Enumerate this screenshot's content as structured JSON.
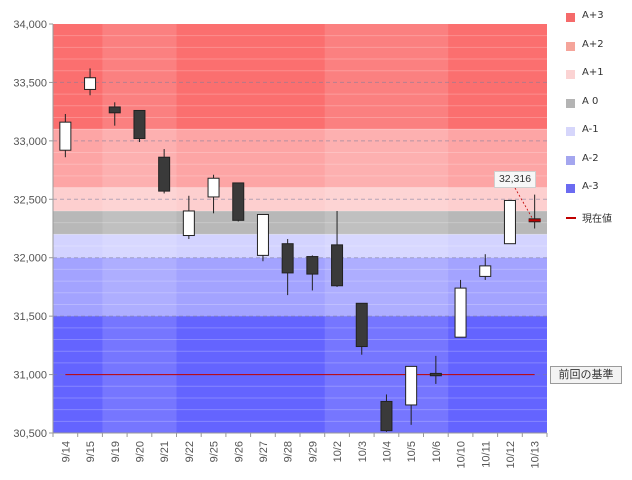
{
  "chart_data": {
    "type": "candlestick",
    "title": "",
    "xlabel": "",
    "ylabel": "",
    "ylim": [
      30500,
      34000
    ],
    "yticks": [
      "30,500",
      "31,000",
      "31,500",
      "32,000",
      "32,500",
      "33,000",
      "33,500",
      "34,000"
    ],
    "ytick_values": [
      30500,
      31000,
      31500,
      32000,
      32500,
      33000,
      33500,
      34000
    ],
    "categories": [
      "9/14",
      "9/15",
      "9/19",
      "9/20",
      "9/21",
      "9/22",
      "9/25",
      "9/26",
      "9/27",
      "9/28",
      "9/29",
      "10/2",
      "10/3",
      "10/4",
      "10/5",
      "10/6",
      "10/10",
      "10/11",
      "10/12",
      "10/13"
    ],
    "candles": [
      {
        "date": "9/14",
        "open": 32920,
        "close": 33160,
        "high": 33230,
        "low": 32860
      },
      {
        "date": "9/15",
        "open": 33440,
        "close": 33540,
        "high": 33620,
        "low": 33390
      },
      {
        "date": "9/19",
        "open": 33290,
        "close": 33240,
        "high": 33330,
        "low": 33130
      },
      {
        "date": "9/20",
        "open": 33260,
        "close": 33020,
        "high": 33260,
        "low": 32990
      },
      {
        "date": "9/21",
        "open": 32860,
        "close": 32570,
        "high": 32930,
        "low": 32550
      },
      {
        "date": "9/22",
        "open": 32190,
        "close": 32400,
        "high": 32530,
        "low": 32160
      },
      {
        "date": "9/25",
        "open": 32520,
        "close": 32680,
        "high": 32710,
        "low": 32380
      },
      {
        "date": "9/26",
        "open": 32640,
        "close": 32320,
        "high": 32640,
        "low": 32310
      },
      {
        "date": "9/27",
        "open": 32020,
        "close": 32370,
        "high": 32370,
        "low": 31970
      },
      {
        "date": "9/28",
        "open": 32120,
        "close": 31870,
        "high": 32160,
        "low": 31680
      },
      {
        "date": "9/29",
        "open": 32010,
        "close": 31860,
        "high": 32020,
        "low": 31720
      },
      {
        "date": "10/2",
        "open": 32110,
        "close": 31760,
        "high": 32400,
        "low": 31750
      },
      {
        "date": "10/3",
        "open": 31610,
        "close": 31240,
        "high": 31610,
        "low": 31170
      },
      {
        "date": "10/4",
        "open": 30770,
        "close": 30520,
        "high": 30830,
        "low": 30510
      },
      {
        "date": "10/5",
        "open": 30740,
        "close": 31070,
        "high": 31070,
        "low": 30570
      },
      {
        "date": "10/6",
        "open": 31010,
        "close": 30990,
        "high": 31160,
        "low": 30920
      },
      {
        "date": "10/10",
        "open": 31320,
        "close": 31740,
        "high": 31810,
        "low": 31320
      },
      {
        "date": "10/11",
        "open": 31840,
        "close": 31930,
        "high": 32030,
        "low": 31810
      },
      {
        "date": "10/12",
        "open": 32120,
        "close": 32490,
        "high": 32490,
        "low": 32120
      },
      {
        "date": "10/13",
        "open": 32320,
        "close": 32320,
        "high": 32540,
        "low": 32250
      }
    ],
    "zones": [
      {
        "name": "A+3",
        "from": 33100,
        "to": 34000,
        "color": "#fb6f6f",
        "legend_color": "#f56a6a"
      },
      {
        "name": "A+2",
        "from": 32600,
        "to": 33100,
        "color": "#fda5a5",
        "legend_color": "#f5a49a"
      },
      {
        "name": "A+1",
        "from": 32400,
        "to": 32600,
        "color": "#fdcfcf",
        "legend_color": "#fbd3d3"
      },
      {
        "name": "A 0",
        "from": 32200,
        "to": 32400,
        "color": "#b8b8b8",
        "legend_color": "#b4b4b4"
      },
      {
        "name": "A-1",
        "from": 32000,
        "to": 32200,
        "color": "#d3d3ff",
        "legend_color": "#d6d6fb"
      },
      {
        "name": "A-2",
        "from": 31500,
        "to": 32000,
        "color": "#a3a3ff",
        "legend_color": "#a4a6ef"
      },
      {
        "name": "A-3",
        "from": 30500,
        "to": 31500,
        "color": "#6464ff",
        "legend_color": "#6b6bf1"
      }
    ],
    "current_value": {
      "label": "現在値",
      "value": 32316,
      "display": "32,316",
      "color": "#c00000"
    },
    "previous_baseline": {
      "label": "前回の基準",
      "value": 31000,
      "color": "#c00000"
    }
  }
}
